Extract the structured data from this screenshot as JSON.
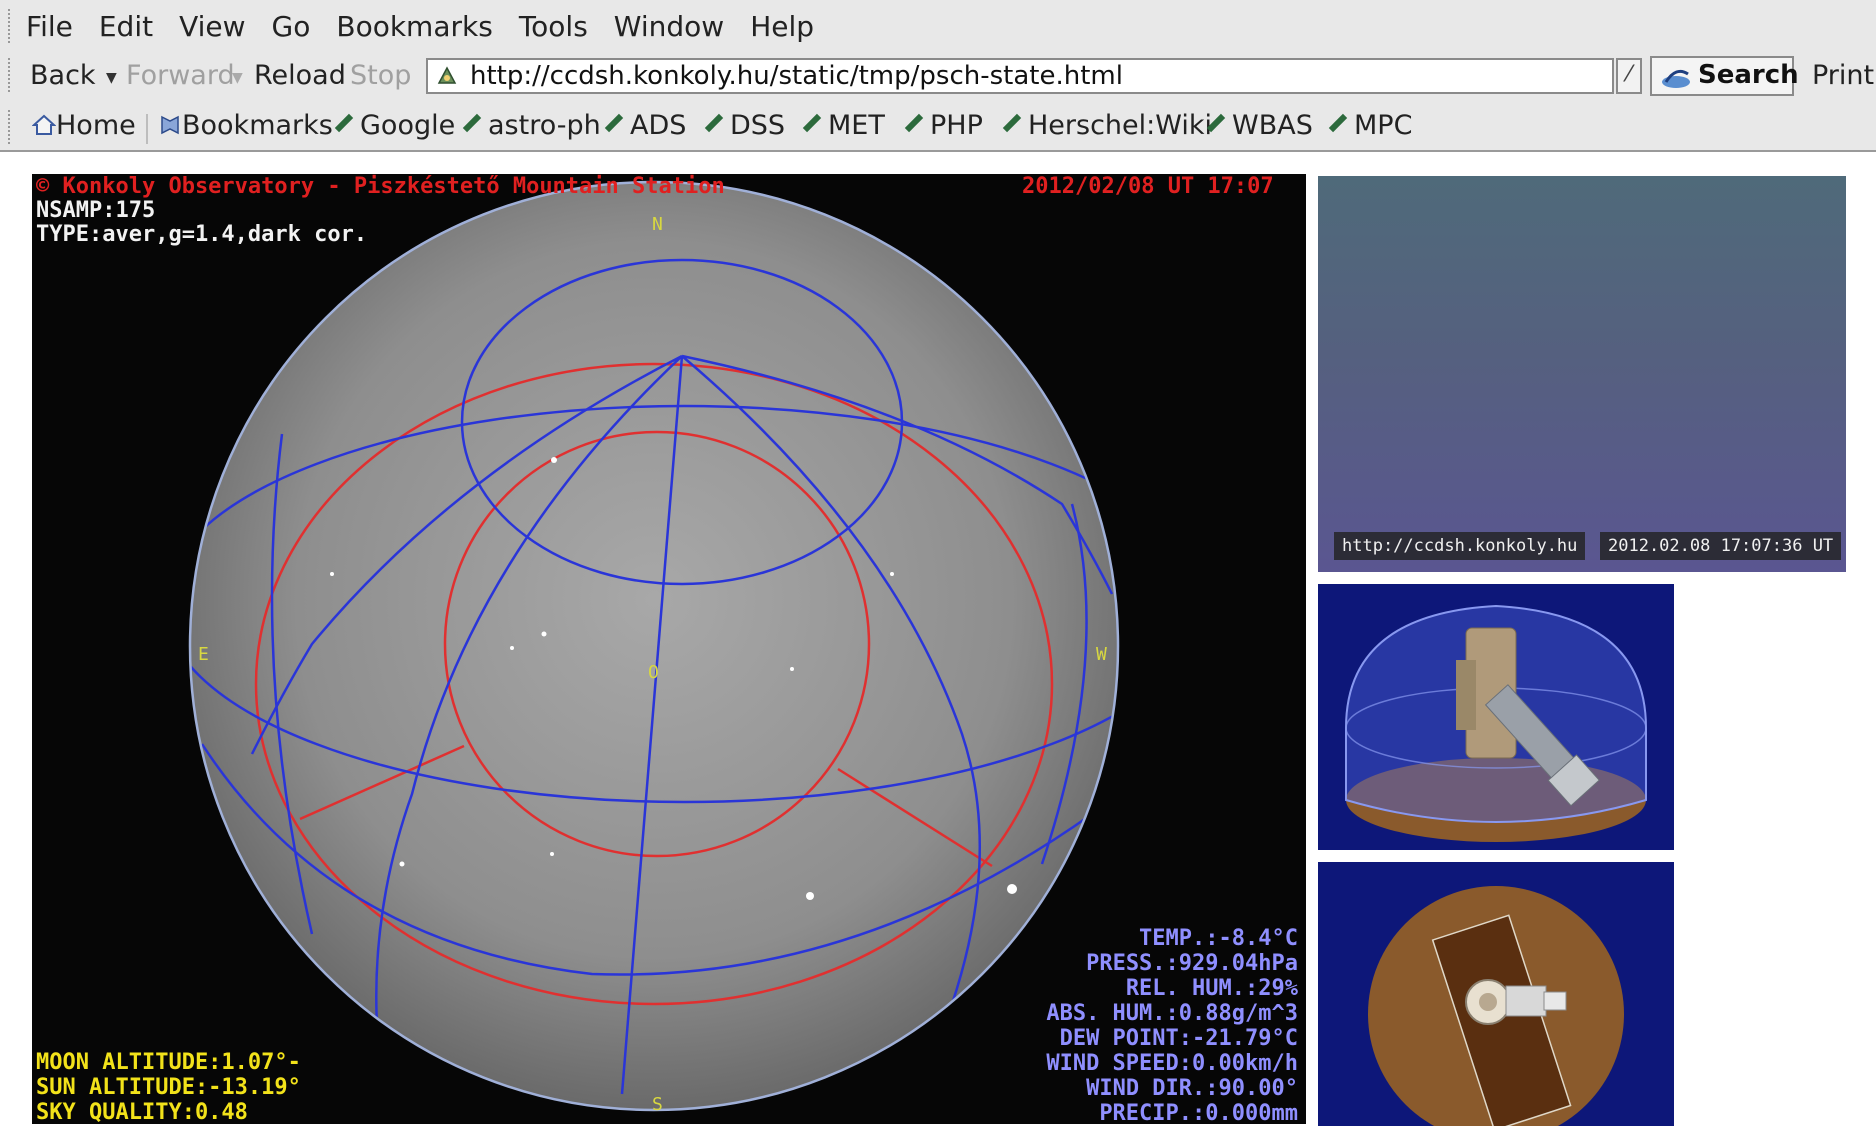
{
  "menu": [
    "File",
    "Edit",
    "View",
    "Go",
    "Bookmarks",
    "Tools",
    "Window",
    "Help"
  ],
  "nav": {
    "back": "Back",
    "forward": "Forward",
    "reload": "Reload",
    "stop": "Stop",
    "url": "http://ccdsh.konkoly.hu/static/tmp/psch-state.html",
    "search": "Search",
    "print": "Print"
  },
  "bookmarks": [
    "Home",
    "Bookmarks",
    "Google",
    "astro-ph",
    "ADS",
    "DSS",
    "MET",
    "PHP",
    "Herschel:Wiki",
    "WBAS",
    "MPC"
  ],
  "allsky": {
    "header_left": "© Konkoly Observatory - Piszkéstető Mountain Station",
    "header_right": "2012/02/08 UT 17:07",
    "nsamp": "NSAMP:175",
    "type": "TYPE:aver,g=1.4,dark cor.",
    "compass": {
      "n": "N",
      "e": "E",
      "w": "W",
      "s": "S",
      "z": "O"
    },
    "left_readings": [
      "MOON ALTITUDE:1.07°-",
      "SUN  ALTITUDE:-13.19°",
      "SKY QUALITY:0.48"
    ],
    "right_readings": [
      "TEMP.:-8.4°C",
      "PRESS.:929.04hPa",
      "REL. HUM.:29%",
      "ABS. HUM.:0.88g/m^3",
      "DEW POINT:-21.79°C",
      "WIND SPEED:0.00km/h",
      "WIND DIR.:90.00°",
      "PRECIP.:0.000mm"
    ]
  },
  "webcam": {
    "url_label": "http://ccdsh.konkoly.hu",
    "time_label": "2012.02.08 17:07:36 UT"
  },
  "colors": {
    "chrome": "#e8e8e8",
    "grid_red": "#e03030",
    "grid_blue": "#2a35d8",
    "panel_blue": "#0d1779",
    "floor_brown": "#8a5a2c"
  }
}
